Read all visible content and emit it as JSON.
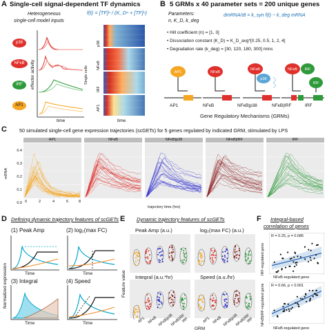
{
  "panelA": {
    "label": "A",
    "title": "Single-cell signal-dependent TF dynamics",
    "subtitle_line1": "Heterogeneous",
    "subtitle_line2": "single-cell model inputs",
    "formula": "f(t) = [TF]ⁿ / (K_Dⁿ + [TF]ⁿ)",
    "tfs": [
      "p38",
      "NFκB",
      "IRF",
      "AP1"
    ],
    "y_label": "effector activity",
    "x_label": "time",
    "heat_y_label": "Single cells",
    "heat_x_label": "time",
    "heat_rows": [
      "p38",
      "NFκB",
      "IRF",
      "AP1"
    ]
  },
  "panelB": {
    "label": "B",
    "title": "5 GRMs x 40 parameter sets = 200 unique genes",
    "params_label": "Parameters:",
    "params_vars": "n, K_D, k_deg",
    "equation": "dmRNA/dt = k_syn f(t) − k_deg mRNA",
    "bullets": [
      "Hill coefficient (n) = [1, 3]",
      "Dissociation constant (K_D) = K_D_avg*[0.25, 0.5, 1, 2, 4]",
      "Degradation rate (k_deg) = [30, 120, 180, 300] mins"
    ],
    "grm_names": [
      "AP1",
      "NFκB",
      "NFκB|p38",
      "NFκB|IRF",
      "IRF"
    ],
    "footer": "Gene Regulatory Mechanisms (GRMs)"
  },
  "panelC": {
    "label": "C",
    "title": "50 simulated single-cell gene expression trajectories (scGETs) for 5 genes regulated by indicated GRM, stimulated by LPS",
    "y_label": "mRNA",
    "x_label": "trajectory time (hrs)",
    "facets": [
      "AP1",
      "NFκB",
      "NFκB|p38",
      "NFκB|IRF",
      "IRF"
    ],
    "x_ticks": [
      "0",
      "2",
      "4",
      "6",
      "8"
    ],
    "y_ticks": [
      "0.0",
      "0.1",
      "0.2",
      "0.3",
      "0.4"
    ],
    "colors": [
      "#f5a623",
      "#e0302b",
      "#2c2ccf",
      "#8c1c1c",
      "#2e9a3a"
    ]
  },
  "panelD": {
    "label": "D",
    "title": "Defining dynamic trajectory features of scGETs",
    "y_label": "Normalized expression",
    "subpanels": [
      "(1) Peak Amp",
      "(2) log₂(max FC)",
      "(3) Integral",
      "(4) Speed"
    ],
    "x_label": "Time"
  },
  "panelE": {
    "label": "E",
    "title": "Dynamic trajectory features of scGETs",
    "y_label": "Feature value",
    "x_label": "GRM",
    "facets": [
      "Peak Amp (a.u.)",
      "log₂(max FC) (a.u.)",
      "Integral (a.u.*hr)",
      "Speed (a.u./hr)"
    ],
    "categories": [
      "AP1",
      "NFκB",
      "NFκB|p38",
      "NFκB|IRF",
      "IRF"
    ]
  },
  "panelF": {
    "label": "F",
    "title_line1": "Integral-based",
    "title_line2": "correlation of genes",
    "top_stat": "R = 0.25, p = 0.085",
    "top_y": "IRF-regulated gene",
    "top_x": "NFκB-regulated gene",
    "bot_stat": "R = 0.66, p < 0.001",
    "bot_y": "NFκB|IRF-regulated gene",
    "bot_x": "NFκB-regulated gene"
  }
}
